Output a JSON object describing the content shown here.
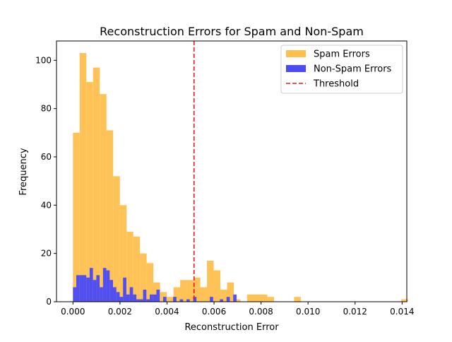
{
  "chart_data": {
    "type": "histogram",
    "title": "Reconstruction Errors for Spam and Non-Spam",
    "xlabel": "Reconstruction Error",
    "ylabel": "Frequency",
    "xlim": [
      -0.0007,
      0.0142
    ],
    "ylim": [
      0,
      108
    ],
    "xticks": [
      0.0,
      0.002,
      0.004,
      0.006,
      0.008,
      0.01,
      0.012,
      0.014
    ],
    "xtick_labels": [
      "0.000",
      "0.002",
      "0.004",
      "0.006",
      "0.008",
      "0.010",
      "0.012",
      "0.014"
    ],
    "yticks": [
      0,
      20,
      40,
      60,
      80,
      100
    ],
    "ytick_labels": [
      "0",
      "20",
      "40",
      "60",
      "80",
      "100"
    ],
    "grid": false,
    "legend_position": "top-right",
    "series": [
      {
        "name": "Spam Errors",
        "color": "#ffbf4d",
        "bin_start": 0.0,
        "bin_width": 0.000285,
        "counts": [
          70,
          103,
          91,
          97,
          86,
          71,
          52,
          40,
          29,
          27,
          20,
          16,
          8,
          4,
          2,
          6,
          9,
          9,
          10,
          6,
          17,
          13,
          5,
          8,
          1,
          0,
          3,
          3,
          3,
          2,
          0,
          0,
          0,
          2,
          0,
          0,
          0,
          0,
          0,
          0,
          0,
          0,
          0,
          0,
          0,
          0,
          0,
          0,
          0,
          1
        ]
      },
      {
        "name": "Non-Spam Errors",
        "color": "#4b4bf5",
        "bin_start": 0.0,
        "bin_width": 0.000142,
        "counts": [
          6,
          11,
          11,
          11,
          10,
          14,
          9,
          11,
          6,
          14,
          13,
          9,
          6,
          4,
          2,
          10,
          3,
          6,
          3,
          1,
          1,
          5,
          1,
          3,
          3,
          5,
          0,
          2,
          0,
          0,
          2,
          0,
          1,
          0,
          1,
          0,
          2,
          0,
          0,
          0,
          0,
          2,
          0,
          0,
          1,
          0,
          2,
          0,
          3
        ]
      }
    ],
    "threshold": {
      "name": "Threshold",
      "value": 0.00515,
      "color": "#e41a1c"
    }
  }
}
